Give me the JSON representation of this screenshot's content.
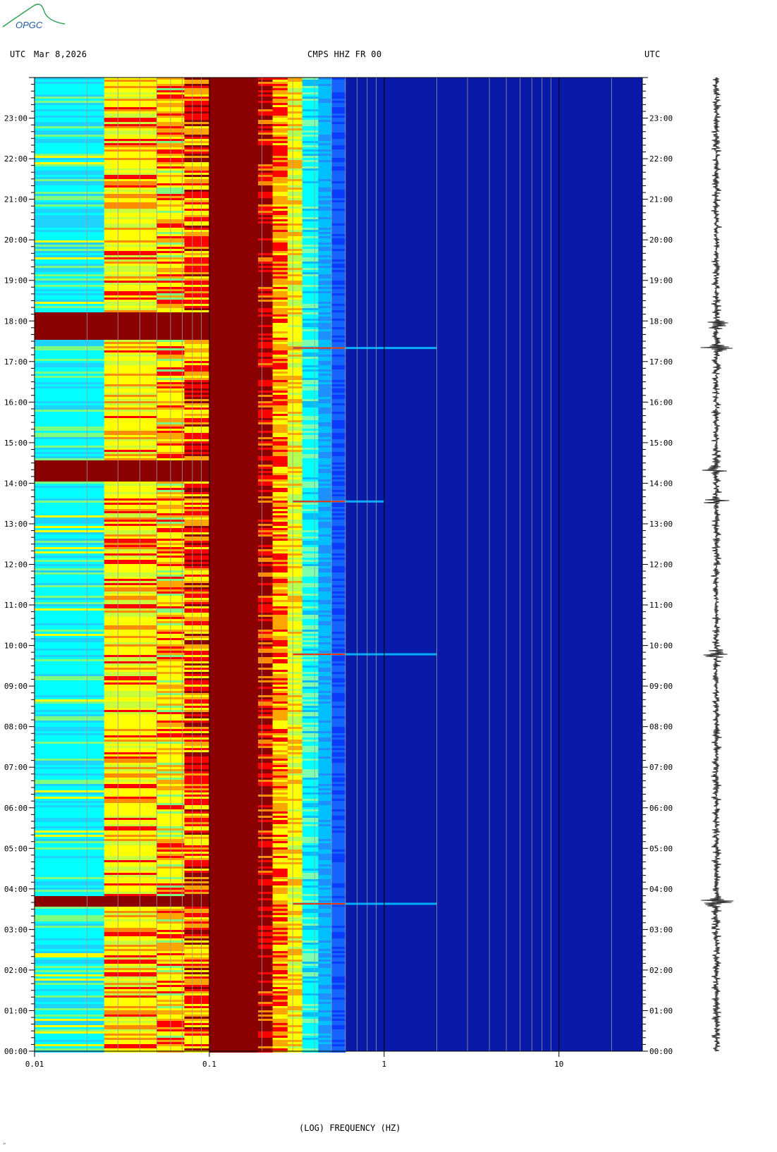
{
  "logo": {
    "text": "OPGC",
    "colors": {
      "swoosh": "#2e9e4f",
      "text": "#1e5aa8"
    }
  },
  "header": {
    "left_utc": "UTC",
    "date": "Mar 8,2026",
    "station": "CMPS HHZ FR 00",
    "right_utc": "UTC"
  },
  "footer_mark": "\"",
  "chart_data": {
    "type": "heatmap",
    "title": "CMPS HHZ FR 00",
    "xlabel": "(LOG) FREQUENCY (HZ)",
    "xscale": "log",
    "xlim": [
      0.01,
      30
    ],
    "x_ticks": [
      "0.01",
      "0.1",
      "1",
      "10"
    ],
    "ylim_hours": [
      0,
      24
    ],
    "y_ticks": [
      "00:00",
      "01:00",
      "02:00",
      "03:00",
      "04:00",
      "05:00",
      "06:00",
      "07:00",
      "08:00",
      "09:00",
      "10:00",
      "11:00",
      "12:00",
      "13:00",
      "14:00",
      "15:00",
      "16:00",
      "17:00",
      "18:00",
      "19:00",
      "20:00",
      "21:00",
      "22:00",
      "23:00"
    ],
    "colormap": [
      "#00008b",
      "#0000ff",
      "#00bfff",
      "#00ffff",
      "#ffff00",
      "#ff0000",
      "#8b0000"
    ],
    "bands": [
      {
        "fmin": 0.01,
        "fmax": 0.025,
        "level": "cyan"
      },
      {
        "fmin": 0.025,
        "fmax": 0.05,
        "level": "yellow"
      },
      {
        "fmin": 0.05,
        "fmax": 0.1,
        "level": "yellow-red"
      },
      {
        "fmin": 0.1,
        "fmax": 0.2,
        "level": "dark-red"
      },
      {
        "fmin": 0.2,
        "fmax": 0.3,
        "level": "red-yellow"
      },
      {
        "fmin": 0.3,
        "fmax": 0.6,
        "level": "cyan-blue"
      },
      {
        "fmin": 0.6,
        "fmax": 30,
        "level": "dark-blue"
      }
    ],
    "events": [
      {
        "time": "03:38",
        "fmax": 2.0
      },
      {
        "time": "09:47",
        "fmax": 2.0
      },
      {
        "time": "17:20",
        "fmax": 2.0
      },
      {
        "time": "13:33",
        "fmax": 1.0
      }
    ],
    "strong_low_freq_bands": [
      {
        "from": "03:35",
        "to": "03:50"
      },
      {
        "from": "14:05",
        "to": "14:35"
      },
      {
        "from": "17:35",
        "to": "18:15"
      }
    ]
  }
}
